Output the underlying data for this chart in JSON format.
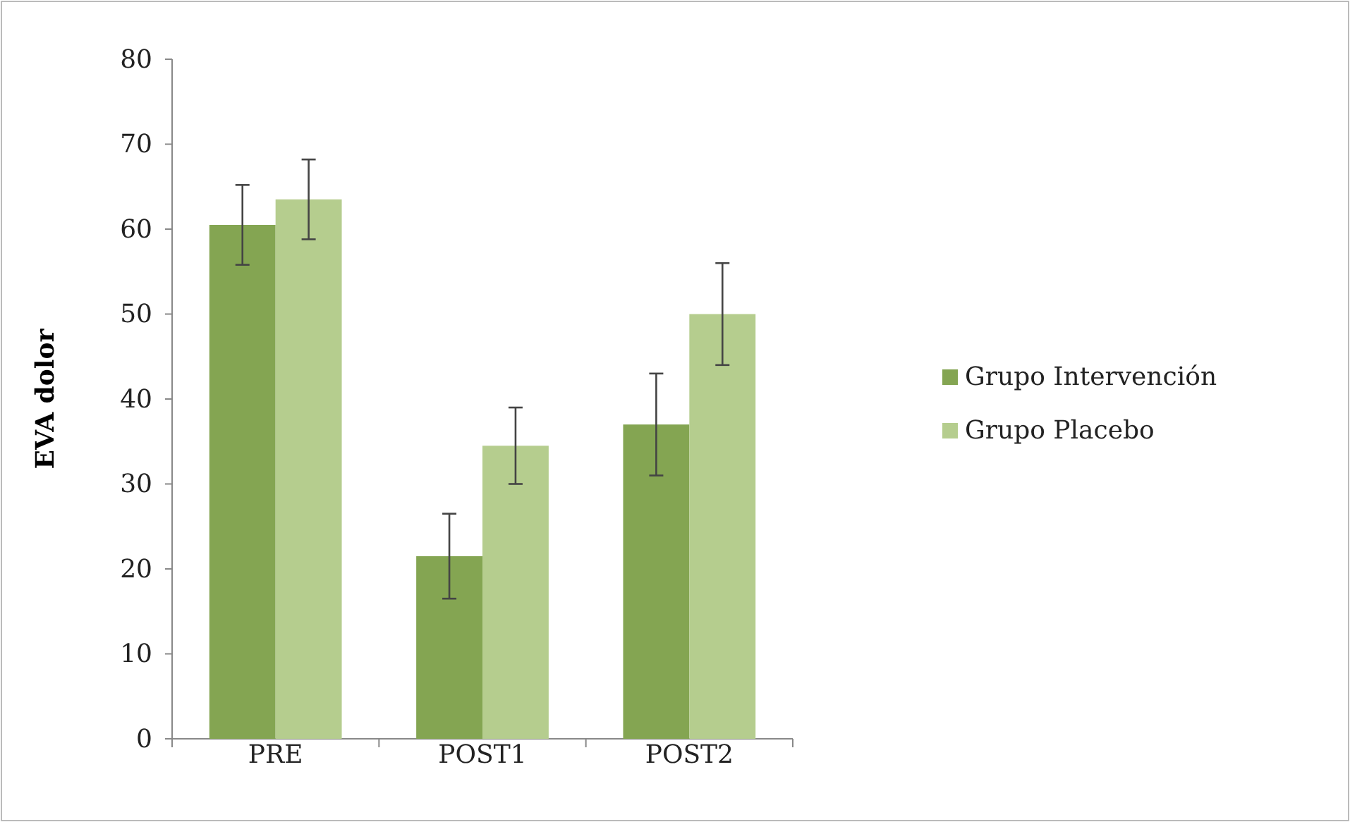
{
  "chart_data": {
    "type": "bar",
    "ylabel": "EVA dolor",
    "categories": [
      "PRE",
      "POST1",
      "POST2"
    ],
    "series": [
      {
        "name": "Grupo Intervención",
        "color": "#84a552",
        "values": [
          60.5,
          21.5,
          37
        ],
        "errors": [
          4.7,
          5,
          6
        ]
      },
      {
        "name": "Grupo Placebo",
        "color": "#b5cd8e",
        "values": [
          63.5,
          34.5,
          50
        ],
        "errors": [
          4.7,
          4.5,
          6
        ]
      }
    ],
    "ylim": [
      0,
      80
    ],
    "yticks": [
      0,
      10,
      20,
      30,
      40,
      50,
      60,
      70,
      80
    ],
    "grid": false,
    "legend": "right"
  }
}
